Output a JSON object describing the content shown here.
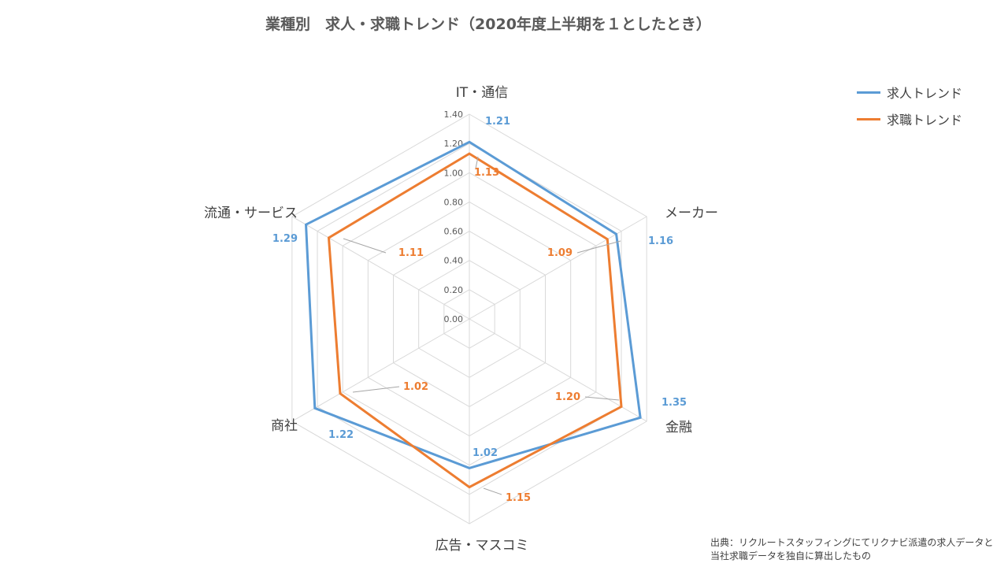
{
  "chart_data": {
    "type": "radar",
    "title": "業種別　求人・求職トレンド（2020年度上半期を１としたとき）",
    "categories": [
      "IT・通信",
      "メーカー",
      "金融",
      "広告・マスコミ",
      "商社",
      "流通・サービス"
    ],
    "radial_ticks": [
      "0.00",
      "0.20",
      "0.40",
      "0.60",
      "0.80",
      "1.00",
      "1.20",
      "1.40"
    ],
    "rlim": [
      0,
      1.4
    ],
    "grid": true,
    "legend_position": "top-right",
    "series": [
      {
        "name": "求人トレンド",
        "color": "#5b9bd5",
        "values": [
          1.21,
          1.16,
          1.35,
          1.02,
          1.22,
          1.29
        ],
        "labels": [
          "1.21",
          "1.16",
          "1.35",
          "1.02",
          "1.22",
          "1.29"
        ]
      },
      {
        "name": "求職トレンド",
        "color": "#ed7d31",
        "values": [
          1.13,
          1.09,
          1.2,
          1.15,
          1.02,
          1.11
        ],
        "labels": [
          "1.13",
          "1.09",
          "1.20",
          "1.15",
          "1.02",
          "1.11"
        ]
      }
    ]
  },
  "source": {
    "line1": "出典：リクルートスタッフィングにてリクナビ派遣の求人データと",
    "line2": "当社求職データを独自に算出したもの"
  }
}
